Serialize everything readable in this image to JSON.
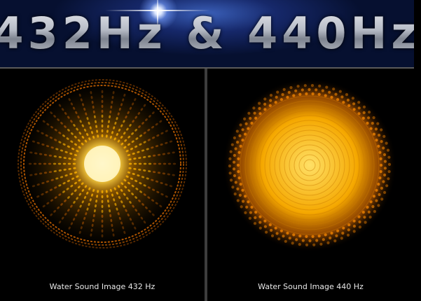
{
  "header": {
    "title": "432Hz & 440Hz"
  },
  "panels": [
    {
      "caption": "Water Sound Image 432 Hz",
      "glow_color": "#ffb400",
      "ring_color": "#d96a00"
    },
    {
      "caption": "Water Sound Image 440 Hz",
      "glow_color": "#ffc21a",
      "ring_color": "#e07a00"
    }
  ]
}
